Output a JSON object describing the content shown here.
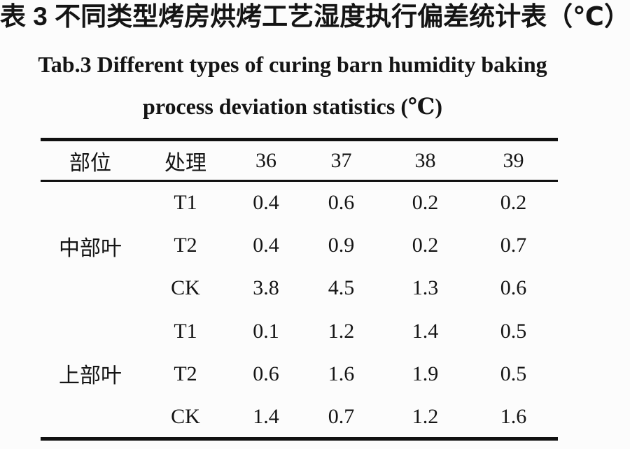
{
  "page": {
    "title_zh": "表 3 不同类型烤房烘烤工艺湿度执行偏差统计表（℃）",
    "title_en_line1": "Tab.3 Different types of curing barn humidity baking",
    "title_en_line2": "process deviation statistics (℃)"
  },
  "chart_data": {
    "type": "table",
    "title": "表3 不同类型烤房烘烤工艺湿度执行偏差统计表（℃）",
    "title_en": "Tab.3 Different types of curing barn humidity baking process deviation statistics (℃)",
    "columns": [
      "部位",
      "处理",
      "36",
      "37",
      "38",
      "39"
    ],
    "groups": [
      {
        "position": "中部叶",
        "rows": [
          {
            "treatment": "T1",
            "values": [
              0.4,
              0.6,
              0.2,
              0.2
            ]
          },
          {
            "treatment": "T2",
            "values": [
              0.4,
              0.9,
              0.2,
              0.7
            ]
          },
          {
            "treatment": "CK",
            "values": [
              3.8,
              4.5,
              1.3,
              0.6
            ]
          }
        ]
      },
      {
        "position": "上部叶",
        "rows": [
          {
            "treatment": "T1",
            "values": [
              0.1,
              1.2,
              1.4,
              0.5
            ]
          },
          {
            "treatment": "T2",
            "values": [
              0.6,
              1.6,
              1.9,
              0.5
            ]
          },
          {
            "treatment": "CK",
            "values": [
              1.4,
              0.7,
              1.2,
              1.6
            ]
          }
        ]
      }
    ]
  },
  "colors": {
    "background": "#fcfcfc",
    "ink": "#141414",
    "rule": "#111111"
  }
}
